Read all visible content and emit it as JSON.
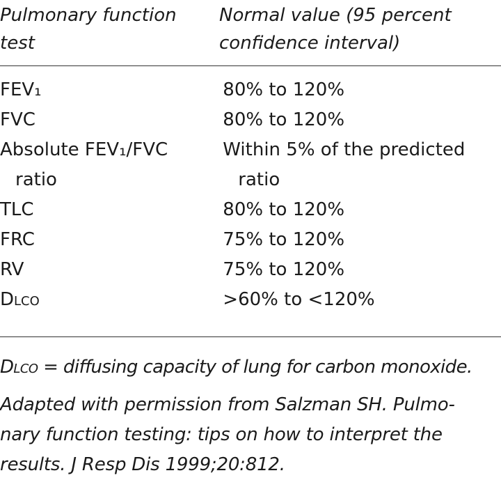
{
  "table": {
    "header": [
      "Pulmonary function test",
      "Normal value (95 percent confidence interval)"
    ],
    "rows": [
      [
        "FEV₁",
        "80% to 120%"
      ],
      [
        "FVC",
        "80% to 120%"
      ],
      [
        "Absolute FEV₁/FVC ratio",
        "Within 5% of the predicted ratio"
      ],
      [
        "TLC",
        "80% to 120%"
      ],
      [
        "FRC",
        "75% to 120%"
      ],
      [
        "RV",
        "75% to 120%"
      ],
      [
        "Dlco",
        ">60% to <120%"
      ]
    ]
  },
  "footnote": {
    "term": "Dlco",
    "text": "= diffusing capacity of lung for carbon monoxide."
  },
  "source": [
    "Adapted with permission from Salzman SH. Pulmo-",
    "nary function testing: tips on how to interpret the",
    "results. J Resp Dis 1999;20:812."
  ]
}
